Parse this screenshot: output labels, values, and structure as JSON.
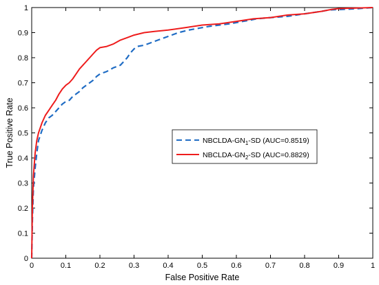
{
  "chart_data": {
    "type": "line",
    "title": "",
    "xlabel": "False Positive Rate",
    "ylabel": "True Positive Rate",
    "xlim": [
      0,
      1
    ],
    "ylim": [
      0,
      1
    ],
    "xticks": [
      "0",
      "0.1",
      "0.2",
      "0.3",
      "0.4",
      "0.5",
      "0.6",
      "0.7",
      "0.8",
      "0.9",
      "1"
    ],
    "yticks": [
      "0",
      "0.1",
      "0.2",
      "0.3",
      "0.4",
      "0.5",
      "0.6",
      "0.7",
      "0.8",
      "0.9",
      "1"
    ],
    "grid": false,
    "legend_position": "center-right",
    "series": [
      {
        "name": "NBCLDA-GN1-SD (AUC=0.8519)",
        "legend_parts": {
          "prefix": "NBCLDA-GN",
          "subscript": "1",
          "suffix": "-SD (AUC=0.8519)"
        },
        "color": "#1f6cc4",
        "style": "dashed",
        "x": [
          0,
          0.002,
          0.005,
          0.01,
          0.015,
          0.02,
          0.03,
          0.04,
          0.05,
          0.06,
          0.07,
          0.08,
          0.09,
          0.1,
          0.11,
          0.12,
          0.13,
          0.14,
          0.15,
          0.16,
          0.17,
          0.18,
          0.19,
          0.2,
          0.22,
          0.24,
          0.26,
          0.27,
          0.28,
          0.29,
          0.3,
          0.31,
          0.33,
          0.35,
          0.37,
          0.4,
          0.43,
          0.46,
          0.48,
          0.5,
          0.52,
          0.55,
          0.58,
          0.6,
          0.62,
          0.64,
          0.66,
          0.7,
          0.75,
          0.8,
          0.85,
          0.87,
          0.9,
          0.95,
          1.0
        ],
        "y": [
          0,
          0.15,
          0.28,
          0.36,
          0.42,
          0.47,
          0.51,
          0.54,
          0.56,
          0.57,
          0.585,
          0.6,
          0.615,
          0.625,
          0.63,
          0.645,
          0.655,
          0.665,
          0.68,
          0.69,
          0.7,
          0.71,
          0.725,
          0.735,
          0.745,
          0.76,
          0.77,
          0.785,
          0.8,
          0.82,
          0.835,
          0.845,
          0.85,
          0.86,
          0.87,
          0.885,
          0.9,
          0.91,
          0.915,
          0.92,
          0.925,
          0.93,
          0.935,
          0.94,
          0.945,
          0.95,
          0.955,
          0.96,
          0.965,
          0.975,
          0.985,
          0.99,
          0.992,
          0.995,
          1.0
        ]
      },
      {
        "name": "NBCLDA-GN2-SD (AUC=0.8829)",
        "legend_parts": {
          "prefix": "NBCLDA-GN",
          "subscript": "2",
          "suffix": "-SD (AUC=0.8829)"
        },
        "color": "#ee1c1c",
        "style": "solid",
        "x": [
          0,
          0.002,
          0.005,
          0.01,
          0.015,
          0.02,
          0.03,
          0.04,
          0.05,
          0.06,
          0.07,
          0.08,
          0.09,
          0.1,
          0.11,
          0.12,
          0.13,
          0.14,
          0.15,
          0.16,
          0.17,
          0.18,
          0.19,
          0.2,
          0.22,
          0.24,
          0.26,
          0.28,
          0.3,
          0.33,
          0.36,
          0.4,
          0.45,
          0.5,
          0.55,
          0.6,
          0.65,
          0.7,
          0.75,
          0.8,
          0.85,
          0.88,
          0.9,
          0.95,
          1.0
        ],
        "y": [
          0,
          0.2,
          0.33,
          0.42,
          0.47,
          0.5,
          0.54,
          0.57,
          0.59,
          0.61,
          0.63,
          0.655,
          0.675,
          0.69,
          0.7,
          0.715,
          0.735,
          0.755,
          0.77,
          0.785,
          0.8,
          0.815,
          0.83,
          0.84,
          0.845,
          0.855,
          0.87,
          0.88,
          0.89,
          0.9,
          0.905,
          0.91,
          0.92,
          0.93,
          0.935,
          0.945,
          0.955,
          0.96,
          0.97,
          0.975,
          0.985,
          0.993,
          0.996,
          0.998,
          1.0
        ]
      }
    ]
  }
}
